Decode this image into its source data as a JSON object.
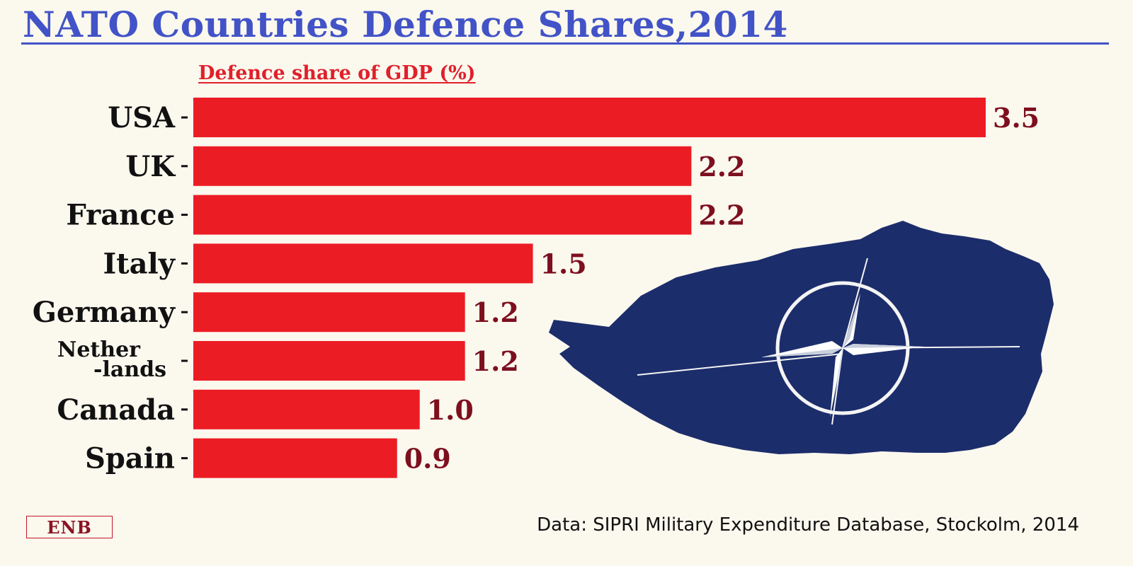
{
  "title": "NATO Countries Defence Shares,2014",
  "logo_text": "ENB",
  "source": "Data: SIPRI Military Expenditure Database, Stockolm, 2014",
  "nato_emblem": {
    "icon": "nato-compass-star-icon",
    "color": "#1c2d6b"
  },
  "colors": {
    "bar": "#ec1c24",
    "value": "#7d0f1e",
    "title": "#4253c7",
    "subtitle": "#e0202a"
  },
  "chart_data": {
    "type": "bar",
    "orientation": "horizontal",
    "title": "Defence share of GDP (%)",
    "categories": [
      "USA",
      "UK",
      "France",
      "Italy",
      "Germany",
      "Nether-lands",
      "Canada",
      "Spain"
    ],
    "category_display": [
      [
        "USA"
      ],
      [
        "UK"
      ],
      [
        "France"
      ],
      [
        "Italy"
      ],
      [
        "Germany"
      ],
      [
        "Nether",
        "-lands"
      ],
      [
        "Canada"
      ],
      [
        "Spain"
      ]
    ],
    "values": [
      3.5,
      2.2,
      2.2,
      1.5,
      1.2,
      1.2,
      1.0,
      0.9
    ],
    "value_labels": [
      "3.5",
      "2.2",
      "2.2",
      "1.5",
      "1.2",
      "1.2",
      "1.0",
      "0.9"
    ],
    "xlim": [
      0,
      3.5
    ],
    "grid": false,
    "legend": false
  }
}
